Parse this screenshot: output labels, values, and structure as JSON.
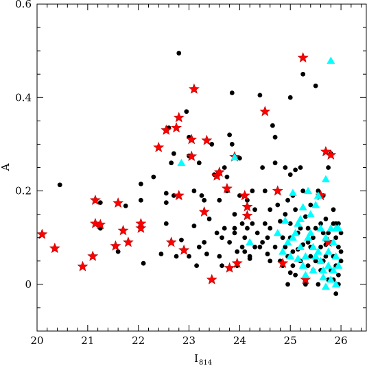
{
  "chart_data": {
    "type": "scatter",
    "title": "",
    "xlabel": "I",
    "xlabel_sub": "814",
    "ylabel": "A",
    "xlim": [
      20,
      26.5
    ],
    "ylim": [
      -0.1,
      0.6
    ],
    "xticks": [
      20,
      21,
      22,
      23,
      24,
      25,
      26
    ],
    "yticks": [
      0,
      0.2,
      0.4,
      0.6
    ],
    "xtick_labels": [
      "20",
      "21",
      "22",
      "23",
      "24",
      "25",
      "26"
    ],
    "ytick_labels": [
      "0",
      "0.2",
      "0.4",
      "0.6"
    ],
    "grid": false,
    "legend": "none",
    "series": [
      {
        "marker": "circle",
        "color": "#000000",
        "points": [
          [
            20.45,
            0.213
          ],
          [
            21.25,
            0.175
          ],
          [
            21.25,
            0.12
          ],
          [
            21.6,
            0.07
          ],
          [
            21.75,
            0.168
          ],
          [
            22.05,
            0.215
          ],
          [
            22.05,
            0.18
          ],
          [
            22.1,
            0.045
          ],
          [
            22.3,
            0.23
          ],
          [
            22.45,
            0.065
          ],
          [
            22.55,
            0.195
          ],
          [
            22.55,
            0.175
          ],
          [
            22.55,
            0.13
          ],
          [
            22.6,
            0.335
          ],
          [
            22.65,
            0.26
          ],
          [
            22.7,
            0.19
          ],
          [
            22.75,
            0.06
          ],
          [
            22.8,
            0.495
          ],
          [
            22.85,
            0.095
          ],
          [
            22.95,
            0.37
          ],
          [
            23.0,
            0.315
          ],
          [
            23.0,
            0.275
          ],
          [
            23.1,
            0.2
          ],
          [
            23.1,
            0.125
          ],
          [
            23.15,
            0.04
          ],
          [
            23.2,
            0.26
          ],
          [
            23.25,
            0.19
          ],
          [
            23.3,
            0.18
          ],
          [
            23.3,
            0.09
          ],
          [
            23.35,
            0.065
          ],
          [
            23.45,
            0.3
          ],
          [
            23.5,
            0.235
          ],
          [
            23.55,
            0.11
          ],
          [
            23.6,
            0.06
          ],
          [
            23.65,
            0.04
          ],
          [
            23.7,
            0.25
          ],
          [
            23.75,
            0.23
          ],
          [
            23.75,
            0.2
          ],
          [
            23.8,
            0.09
          ],
          [
            23.85,
            0.41
          ],
          [
            23.85,
            0.3
          ],
          [
            23.8,
            0.32
          ],
          [
            23.9,
            0.15
          ],
          [
            23.9,
            0.11
          ],
          [
            23.95,
            0.04
          ],
          [
            24.0,
            0.27
          ],
          [
            24.0,
            0.19
          ],
          [
            24.05,
            0.13
          ],
          [
            24.1,
            0.1
          ],
          [
            24.1,
            0.07
          ],
          [
            24.15,
            0.12
          ],
          [
            24.2,
            0.055
          ],
          [
            24.25,
            0.2
          ],
          [
            24.3,
            0.16
          ],
          [
            24.35,
            0.11
          ],
          [
            24.4,
            0.405
          ],
          [
            24.4,
            0.08
          ],
          [
            24.45,
            0.25
          ],
          [
            24.5,
            0.2
          ],
          [
            24.5,
            0.13
          ],
          [
            24.55,
            0.1
          ],
          [
            24.6,
            0.05
          ],
          [
            24.65,
            0.34
          ],
          [
            24.7,
            0.315
          ],
          [
            24.7,
            0.26
          ],
          [
            24.75,
            0.2
          ],
          [
            24.75,
            0.17
          ],
          [
            24.8,
            0.135
          ],
          [
            24.85,
            0.04
          ],
          [
            24.9,
            0.25
          ],
          [
            24.95,
            0.18
          ],
          [
            25.0,
            0.4
          ],
          [
            25.0,
            0.235
          ],
          [
            25.0,
            0.13
          ],
          [
            25.0,
            0.1
          ],
          [
            25.05,
            0.07
          ],
          [
            25.1,
            0.245
          ],
          [
            25.1,
            0.16
          ],
          [
            25.1,
            0.02
          ],
          [
            25.15,
            0.11
          ],
          [
            25.2,
            0.05
          ],
          [
            25.25,
            0.45
          ],
          [
            25.25,
            0.2
          ],
          [
            25.3,
            0.145
          ],
          [
            25.35,
            0.09
          ],
          [
            25.4,
            0.06
          ],
          [
            25.45,
            0.03
          ],
          [
            25.5,
            0.425
          ],
          [
            25.5,
            0.12
          ],
          [
            25.55,
            0.2
          ],
          [
            25.6,
            0.08
          ],
          [
            25.65,
            0.19
          ],
          [
            25.65,
            0.05
          ],
          [
            25.7,
            0.14
          ],
          [
            25.75,
            0.25
          ],
          [
            25.75,
            0.11
          ],
          [
            25.8,
            0.09
          ],
          [
            25.8,
            0.03
          ],
          [
            25.85,
            0.16
          ],
          [
            25.85,
            0.06
          ],
          [
            25.9,
            0.13
          ],
          [
            25.9,
            0.1
          ],
          [
            25.9,
            0.04
          ],
          [
            25.95,
            0.08
          ],
          [
            25.95,
            0.0
          ],
          [
            26.0,
            0.11
          ],
          [
            26.0,
            0.05
          ],
          [
            25.4,
            0.17
          ],
          [
            25.3,
            0.0
          ],
          [
            25.2,
            0.25
          ],
          [
            24.9,
            0.08
          ],
          [
            24.95,
            0.0
          ],
          [
            25.55,
            0.0
          ],
          [
            25.75,
            0.01
          ],
          [
            25.9,
            -0.02
          ],
          [
            25.35,
            0.12
          ],
          [
            25.05,
            0.04
          ],
          [
            24.85,
            0.1
          ],
          [
            24.7,
            0.08
          ],
          [
            24.6,
            0.16
          ],
          [
            24.55,
            0.065
          ],
          [
            24.3,
            0.08
          ],
          [
            24.2,
            0.06
          ],
          [
            24.15,
            0.18
          ],
          [
            24.05,
            0.08
          ],
          [
            23.95,
            0.07
          ],
          [
            23.9,
            0.12
          ],
          [
            23.7,
            0.12
          ],
          [
            23.65,
            0.1
          ],
          [
            23.6,
            0.18
          ],
          [
            23.4,
            0.14
          ],
          [
            23.2,
            0.08
          ],
          [
            23.0,
            0.06
          ],
          [
            22.7,
            0.28
          ],
          [
            25.25,
            0.085
          ],
          [
            25.45,
            0.1
          ],
          [
            25.6,
            0.13
          ],
          [
            25.7,
            0.06
          ],
          [
            25.85,
            0.01
          ],
          [
            25.95,
            0.02
          ],
          [
            26.0,
            0.07
          ],
          [
            25.15,
            0.075
          ],
          [
            24.95,
            0.06
          ],
          [
            24.8,
            0.05
          ],
          [
            25.0,
            0.025
          ],
          [
            25.35,
            0.04
          ],
          [
            25.6,
            0.03
          ],
          [
            25.7,
            0.085
          ],
          [
            25.85,
            0.13
          ],
          [
            25.95,
            0.13
          ],
          [
            25.8,
            0.28
          ],
          [
            25.5,
            0.05
          ],
          [
            24.45,
            0.09
          ],
          [
            24.25,
            0.13
          ],
          [
            24.6,
            0.12
          ],
          [
            24.9,
            0.15
          ],
          [
            25.05,
            0.19
          ],
          [
            25.2,
            0.12
          ],
          [
            25.4,
            0.08
          ],
          [
            25.65,
            0.11
          ]
        ]
      },
      {
        "marker": "star",
        "color": "#ff0000",
        "points": [
          [
            20.1,
            0.107
          ],
          [
            20.35,
            0.077
          ],
          [
            20.9,
            0.038
          ],
          [
            21.1,
            0.06
          ],
          [
            21.15,
            0.18
          ],
          [
            21.15,
            0.13
          ],
          [
            21.25,
            0.128
          ],
          [
            21.55,
            0.082
          ],
          [
            21.6,
            0.174
          ],
          [
            21.7,
            0.115
          ],
          [
            21.8,
            0.09
          ],
          [
            22.05,
            0.12
          ],
          [
            22.05,
            0.13
          ],
          [
            22.4,
            0.293
          ],
          [
            22.55,
            0.33
          ],
          [
            22.65,
            0.09
          ],
          [
            22.75,
            0.335
          ],
          [
            22.8,
            0.357
          ],
          [
            22.8,
            0.19
          ],
          [
            22.9,
            0.073
          ],
          [
            23.05,
            0.31
          ],
          [
            23.05,
            0.274
          ],
          [
            23.1,
            0.418
          ],
          [
            23.3,
            0.155
          ],
          [
            23.35,
            0.308
          ],
          [
            23.45,
            0.01
          ],
          [
            23.55,
            0.232
          ],
          [
            23.6,
            0.24
          ],
          [
            23.75,
            0.205
          ],
          [
            23.8,
            0.035
          ],
          [
            23.9,
            0.273
          ],
          [
            23.95,
            0.045
          ],
          [
            24.1,
            0.19
          ],
          [
            24.15,
            0.166
          ],
          [
            24.15,
            0.147
          ],
          [
            24.5,
            0.37
          ],
          [
            24.75,
            0.2
          ],
          [
            24.85,
            0.045
          ],
          [
            25.25,
            0.485
          ],
          [
            25.3,
            0.01
          ],
          [
            25.6,
            0.19
          ],
          [
            25.7,
            0.284
          ],
          [
            25.75,
            0.09
          ],
          [
            25.8,
            0.277
          ]
        ]
      },
      {
        "marker": "triangle",
        "color": "#00ffff",
        "points": [
          [
            22.85,
            0.26
          ],
          [
            23.9,
            0.272
          ],
          [
            24.2,
            0.09
          ],
          [
            24.75,
            0.11
          ],
          [
            24.85,
            0.07
          ],
          [
            24.9,
            0.136
          ],
          [
            24.95,
            0.09
          ],
          [
            25.0,
            0.06
          ],
          [
            25.05,
            0.196
          ],
          [
            25.05,
            0.1
          ],
          [
            25.1,
            0.11
          ],
          [
            25.15,
            0.13
          ],
          [
            25.15,
            0.055
          ],
          [
            25.2,
            0.14
          ],
          [
            25.2,
            0.08
          ],
          [
            25.25,
            0.165
          ],
          [
            25.25,
            0.04
          ],
          [
            25.3,
            0.06
          ],
          [
            25.3,
            0.02
          ],
          [
            25.35,
            0.2
          ],
          [
            25.4,
            0.15
          ],
          [
            25.4,
            0.11
          ],
          [
            25.45,
            0.08
          ],
          [
            25.5,
            0.17
          ],
          [
            25.5,
            0.06
          ],
          [
            25.55,
            0.19
          ],
          [
            25.6,
            0.12
          ],
          [
            25.6,
            0.05
          ],
          [
            25.65,
            0.03
          ],
          [
            25.7,
            0.225
          ],
          [
            25.7,
            0.1
          ],
          [
            25.7,
            -0.005
          ],
          [
            25.75,
            0.07
          ],
          [
            25.75,
            0.04
          ],
          [
            25.8,
            0.479
          ],
          [
            25.8,
            0.12
          ],
          [
            25.8,
            0.01
          ],
          [
            25.85,
            0.09
          ],
          [
            25.85,
            0.03
          ],
          [
            25.9,
            0.12
          ],
          [
            25.9,
            0.06
          ],
          [
            25.9,
            0.0
          ],
          [
            25.95,
            0.04
          ],
          [
            25.65,
            0.015
          ],
          [
            25.95,
            0.12
          ],
          [
            25.55,
            0.07
          ],
          [
            25.45,
            0.03
          ],
          [
            25.35,
            0.1
          ]
        ]
      }
    ]
  }
}
